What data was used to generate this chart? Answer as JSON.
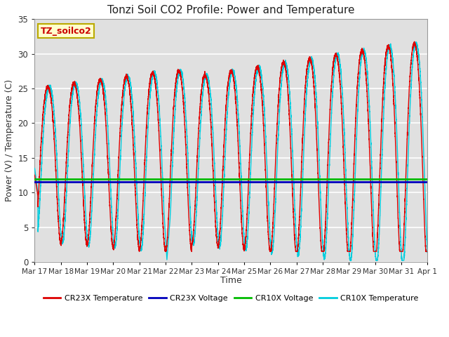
{
  "title": "Tonzi Soil CO2 Profile: Power and Temperature",
  "xlabel": "Time",
  "ylabel": "Power (V) / Temperature (C)",
  "ylim": [
    0,
    35
  ],
  "xlim": [
    0,
    15
  ],
  "xtick_labels": [
    "Mar 17",
    "Mar 18",
    "Mar 19",
    "Mar 20",
    "Mar 21",
    "Mar 22",
    "Mar 23",
    "Mar 24",
    "Mar 25",
    "Mar 26",
    "Mar 27",
    "Mar 28",
    "Mar 29",
    "Mar 30",
    "Mar 31",
    "Apr 1"
  ],
  "cr23x_voltage": 11.55,
  "cr10x_voltage": 11.9,
  "cr23x_color": "#dd0000",
  "cr10x_color": "#00ccdd",
  "cr23x_voltage_color": "#0000bb",
  "cr10x_voltage_color": "#00bb00",
  "label_box_text": "TZ_soilco2",
  "label_box_bg": "#ffffcc",
  "label_box_edge": "#bbaa00",
  "label_text_color": "#cc0000",
  "bg_color": "#e0e0e0",
  "grid_color": "#ffffff",
  "figsize": [
    6.4,
    4.8
  ],
  "dpi": 100
}
